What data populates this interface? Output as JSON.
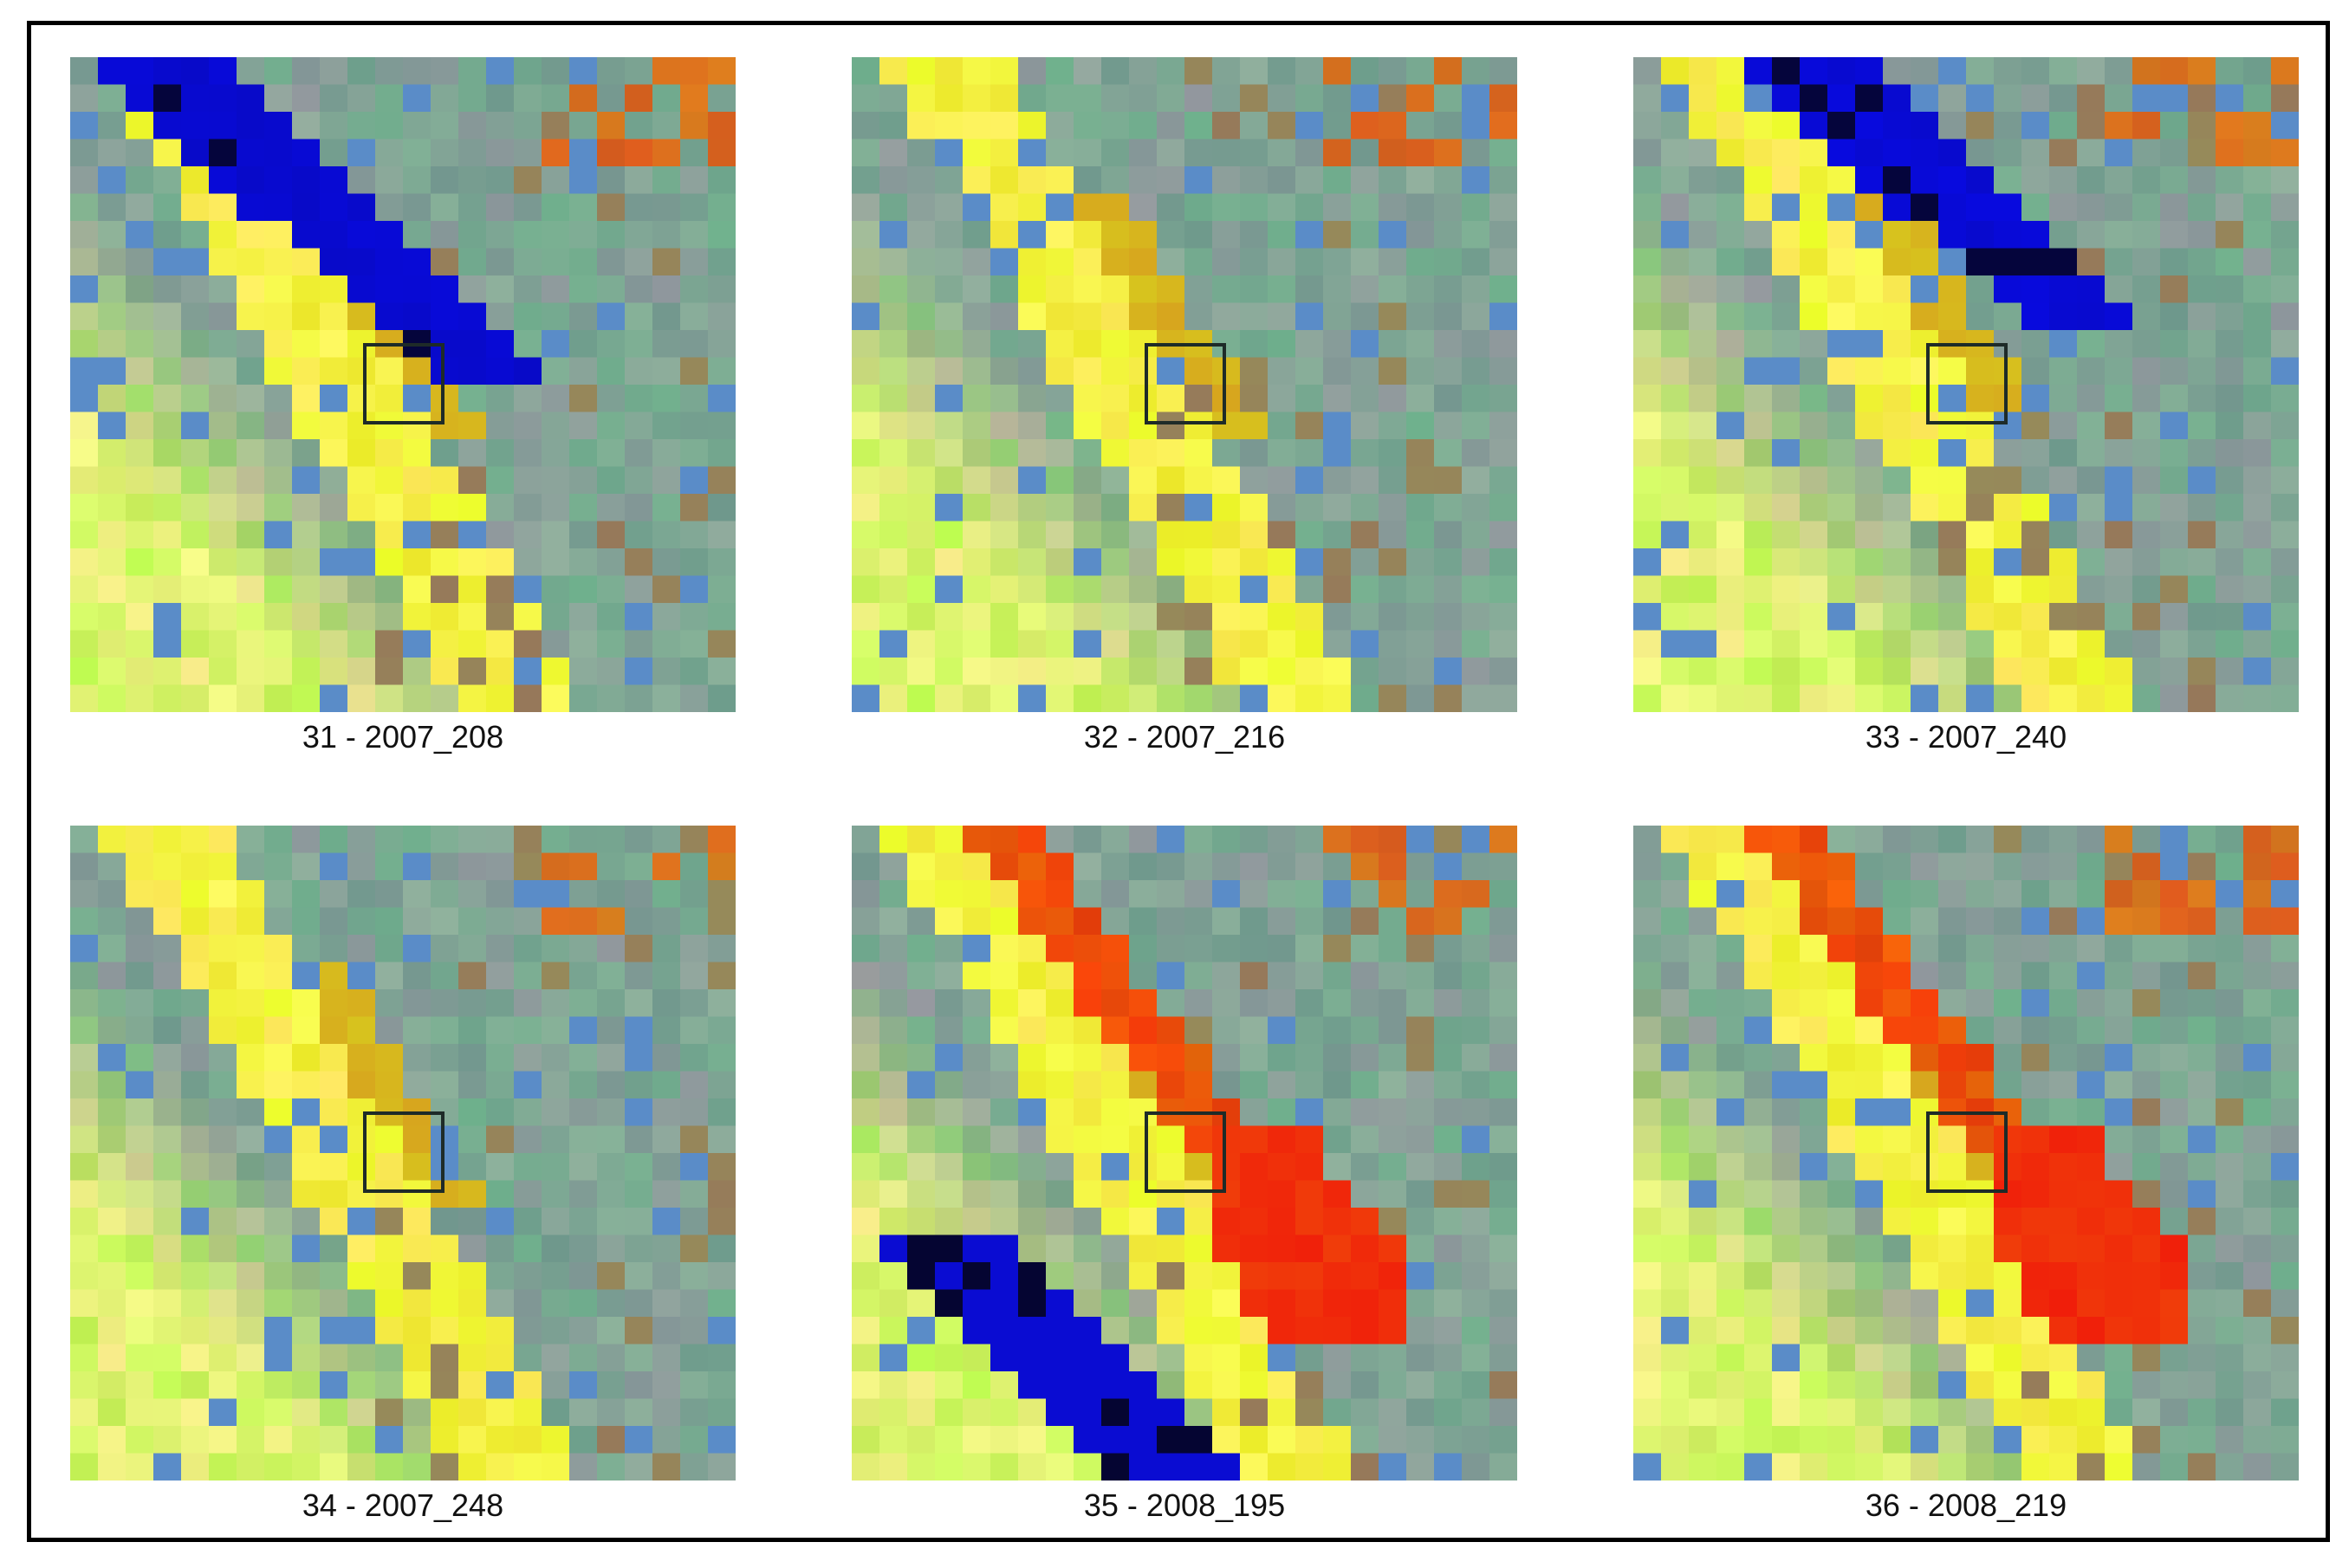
{
  "figure": {
    "panels": [
      {
        "label": "31 - 2007_208",
        "features": [
          "water-upper-right"
        ]
      },
      {
        "label": "32 - 2007_216",
        "features": []
      },
      {
        "label": "33 - 2007_240",
        "features": [
          "water-upper-right-short"
        ]
      },
      {
        "label": "34 - 2007_248",
        "features": []
      },
      {
        "label": "35 - 2008_195",
        "features": [
          "fire-scar",
          "water-lower-left"
        ]
      },
      {
        "label": "36 - 2008_219",
        "features": [
          "fire-scar"
        ]
      }
    ],
    "colors": {
      "background": "#ffffff",
      "frame": "#000000",
      "target_box": "#1e2b28",
      "vegetation_yellow": "#e8f02a",
      "soil_teal": "#7aa89a",
      "water_blue": "#0a0ad2",
      "burn_red": "#e83212",
      "dry_orange": "#c88a28"
    }
  }
}
